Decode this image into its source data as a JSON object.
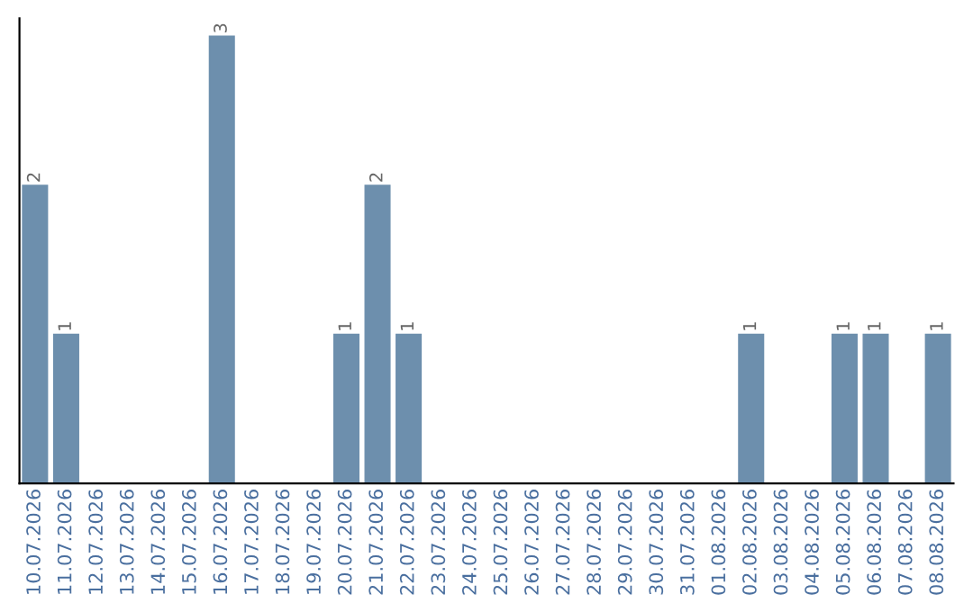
{
  "chart_data": {
    "type": "bar",
    "categories": [
      "10.07.2026",
      "11.07.2026",
      "12.07.2026",
      "13.07.2026",
      "14.07.2026",
      "15.07.2026",
      "16.07.2026",
      "17.07.2026",
      "18.07.2026",
      "19.07.2026",
      "20.07.2026",
      "21.07.2026",
      "22.07.2026",
      "23.07.2026",
      "24.07.2026",
      "25.07.2026",
      "26.07.2026",
      "27.07.2026",
      "28.07.2026",
      "29.07.2026",
      "30.07.2026",
      "31.07.2026",
      "01.08.2026",
      "02.08.2026",
      "03.08.2026",
      "04.08.2026",
      "05.08.2026",
      "06.08.2026",
      "07.08.2026",
      "08.08.2026"
    ],
    "values": [
      2,
      1,
      0,
      0,
      0,
      0,
      3,
      0,
      0,
      0,
      1,
      2,
      1,
      0,
      0,
      0,
      0,
      0,
      0,
      0,
      0,
      0,
      0,
      1,
      0,
      0,
      1,
      1,
      0,
      1
    ],
    "value_labels": [
      "2",
      "1",
      null,
      null,
      null,
      null,
      "3",
      null,
      null,
      null,
      "1",
      "2",
      "1",
      null,
      null,
      null,
      null,
      null,
      null,
      null,
      null,
      null,
      null,
      "1",
      null,
      null,
      "1",
      "1",
      null,
      "1"
    ],
    "color": "#6d8fad",
    "tick_labels": "x",
    "grid": false,
    "legend": false
  }
}
